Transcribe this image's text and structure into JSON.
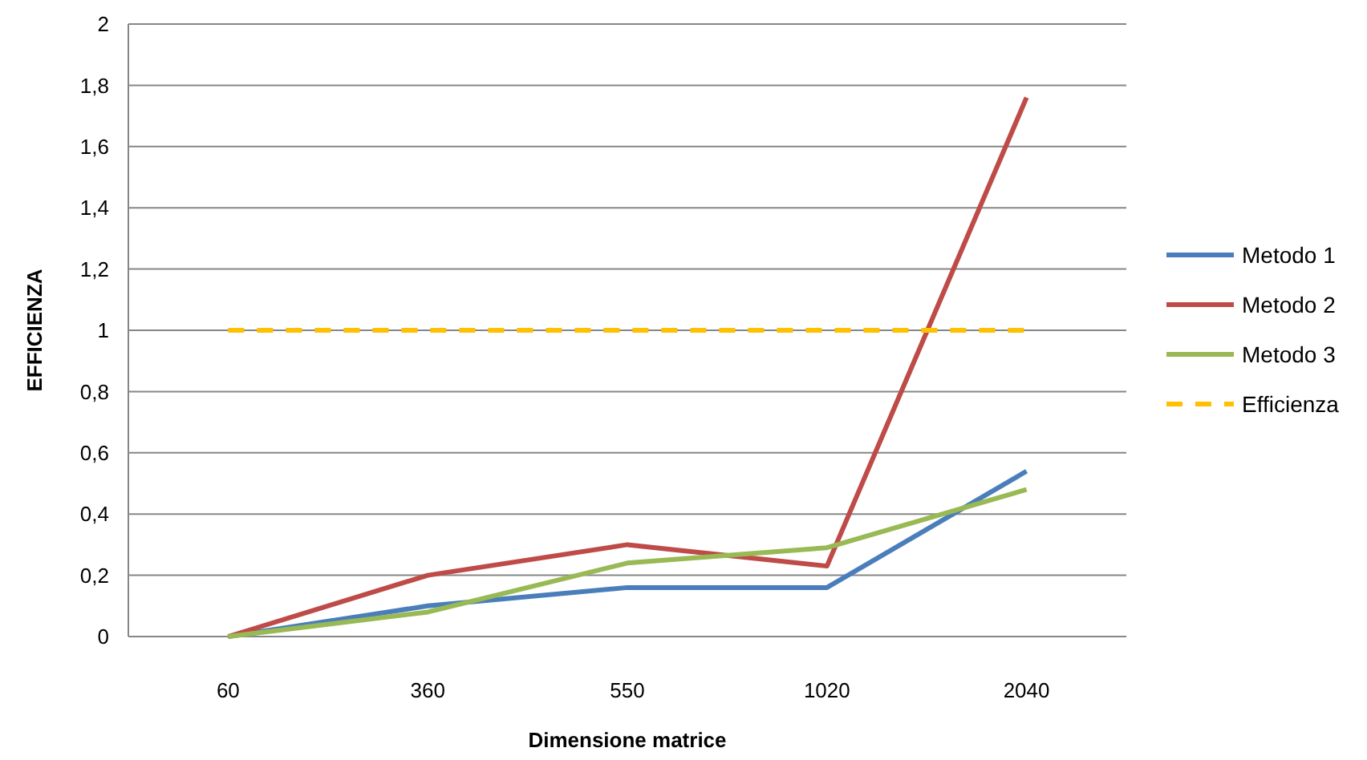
{
  "chart_data": {
    "type": "line",
    "xlabel": "Dimensione matrice",
    "ylabel": "EFFICIENZA",
    "categories": [
      "60",
      "360",
      "550",
      "1020",
      "2040"
    ],
    "series": [
      {
        "name": "Metodo 1",
        "color": "#4a7ebb",
        "values": [
          0,
          0.1,
          0.16,
          0.16,
          0.54
        ]
      },
      {
        "name": "Metodo 2",
        "color": "#be4b48",
        "values": [
          0,
          0.2,
          0.3,
          0.23,
          1.76
        ]
      },
      {
        "name": "Metodo 3",
        "color": "#98b954",
        "values": [
          0,
          0.08,
          0.24,
          0.29,
          0.48
        ]
      },
      {
        "name": "Efficienza",
        "color": "#ffc000",
        "line_style": "dashed",
        "values": [
          1,
          1,
          1,
          1,
          1
        ]
      }
    ],
    "ylim": [
      0,
      2
    ],
    "yticks": [
      0,
      {
        "value": 0.2,
        "label": "0,2"
      },
      {
        "value": 0.4,
        "label": "0,4"
      },
      {
        "value": 0.6,
        "label": "0,6"
      },
      {
        "value": 0.8,
        "label": "0,8"
      },
      1,
      {
        "value": 1.2,
        "label": "1,2"
      },
      {
        "value": 1.4,
        "label": "1,4"
      },
      {
        "value": 1.6,
        "label": "1,6"
      },
      {
        "value": 1.8,
        "label": "1,8"
      },
      2
    ],
    "grid": "y",
    "legend": "right"
  }
}
